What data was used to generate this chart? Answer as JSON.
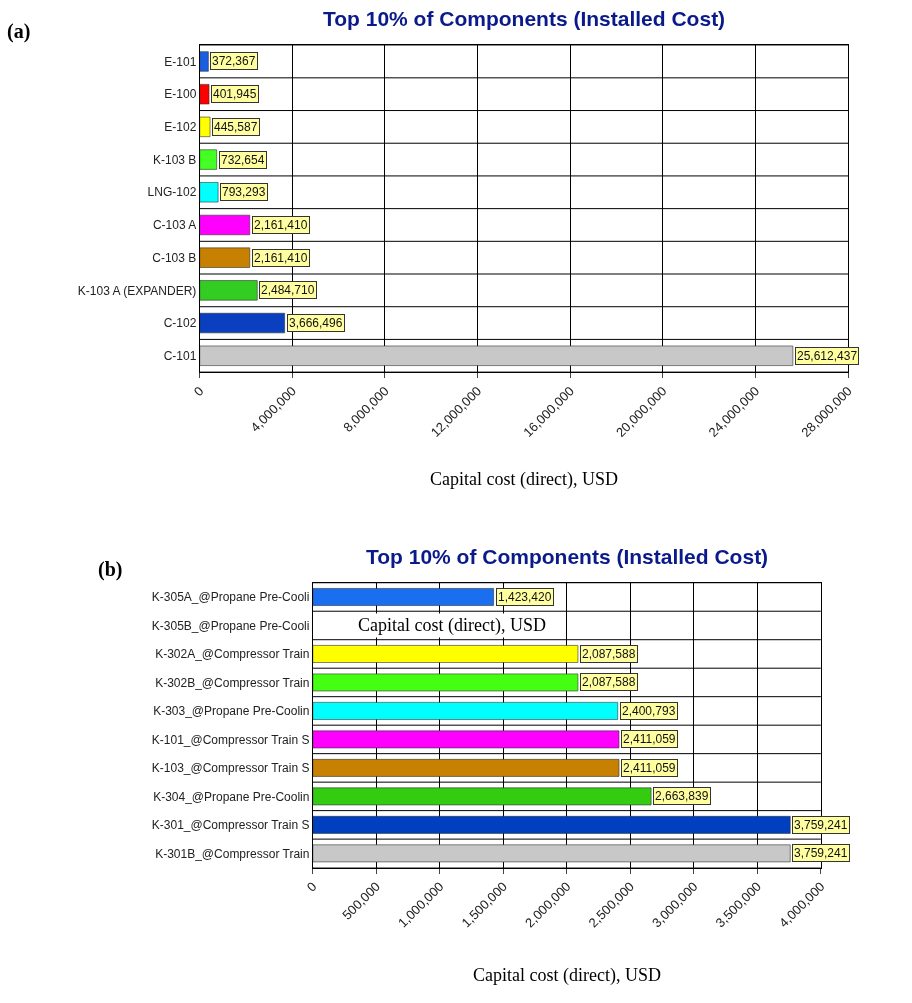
{
  "chart_data": [
    {
      "type": "bar",
      "orientation": "horizontal",
      "title": "Top 10% of Components (Installed Cost)",
      "xlabel": "Capital cost (direct), USD",
      "annotations": [
        "(a)"
      ],
      "categories": [
        "E-101",
        "E-100",
        "E-102",
        "K-103 B",
        "LNG-102",
        "C-103 A",
        "C-103 B",
        "K-103 A (EXPANDER)",
        "C-102",
        "C-101"
      ],
      "values": [
        372367,
        401945,
        445587,
        732654,
        793293,
        2161410,
        2161410,
        2484710,
        3666496,
        25612437
      ],
      "colors": [
        "#1a5fe0",
        "#ff0000",
        "#ffff00",
        "#44ff22",
        "#00ffff",
        "#ff00ff",
        "#c88000",
        "#33cc22",
        "#0a3fc0",
        "#c8c8c8"
      ],
      "xlim": [
        0,
        28000000
      ],
      "xticks": [
        {
          "value": 0,
          "label": "0"
        },
        {
          "value": 4000000,
          "label": "4,000,000"
        },
        {
          "value": 8000000,
          "label": "8,000,000"
        },
        {
          "value": 12000000,
          "label": "12,000,000"
        },
        {
          "value": 16000000,
          "label": "16,000,000"
        },
        {
          "value": 20000000,
          "label": "20,000,000"
        },
        {
          "value": 24000000,
          "label": "24,000,000"
        },
        {
          "value": 28000000,
          "label": "28,000,000"
        }
      ],
      "value_labels": [
        "372,367",
        "401,945",
        "445,587",
        "732,654",
        "793,293",
        "2,161,410",
        "2,161,410",
        "2,484,710",
        "3,666,496",
        "25,612,437"
      ],
      "grid": true
    },
    {
      "type": "bar",
      "orientation": "horizontal",
      "title": "Top 10% of Components (Installed Cost)",
      "xlabel": "Capital cost (direct), USD",
      "annotations": [
        "(b)",
        "Capital cost (direct), USD"
      ],
      "categories": [
        "K-305A_@Propane Pre-Cooli",
        "K-305B_@Propane Pre-Cooli",
        "K-302A_@Compressor Train",
        "K-302B_@Compressor Train",
        "K-303_@Propane Pre-Coolin",
        "K-101_@Compressor Train S",
        "K-103_@Compressor Train S",
        "K-304_@Propane Pre-Coolin",
        "K-301_@Compressor Train S",
        "K-301B_@Compressor Train"
      ],
      "values": [
        1423420,
        null,
        2087588,
        2087588,
        2400793,
        2411059,
        2411059,
        2663839,
        3759241,
        3759241
      ],
      "colors": [
        "#1a6ff0",
        "#ff0000",
        "#ffff00",
        "#44ff11",
        "#00ffff",
        "#ff00ff",
        "#c88000",
        "#33cc11",
        "#0040c0",
        "#c8c8c8"
      ],
      "xlim": [
        0,
        4000000
      ],
      "xticks": [
        {
          "value": 0,
          "label": "0"
        },
        {
          "value": 500000,
          "label": "500,000"
        },
        {
          "value": 1000000,
          "label": "1,000,000"
        },
        {
          "value": 1500000,
          "label": "1,500,000"
        },
        {
          "value": 2000000,
          "label": "2,000,000"
        },
        {
          "value": 2500000,
          "label": "2,500,000"
        },
        {
          "value": 3000000,
          "label": "3,000,000"
        },
        {
          "value": 3500000,
          "label": "3,500,000"
        },
        {
          "value": 4000000,
          "label": "4,000,000"
        }
      ],
      "value_labels": [
        "1,423,420",
        null,
        "2,087,588",
        "2,087,588",
        "2,400,793",
        "2,411,059",
        "2,411,059",
        "2,663,839",
        "3,759,241",
        "3,759,241"
      ],
      "grid": true
    }
  ]
}
